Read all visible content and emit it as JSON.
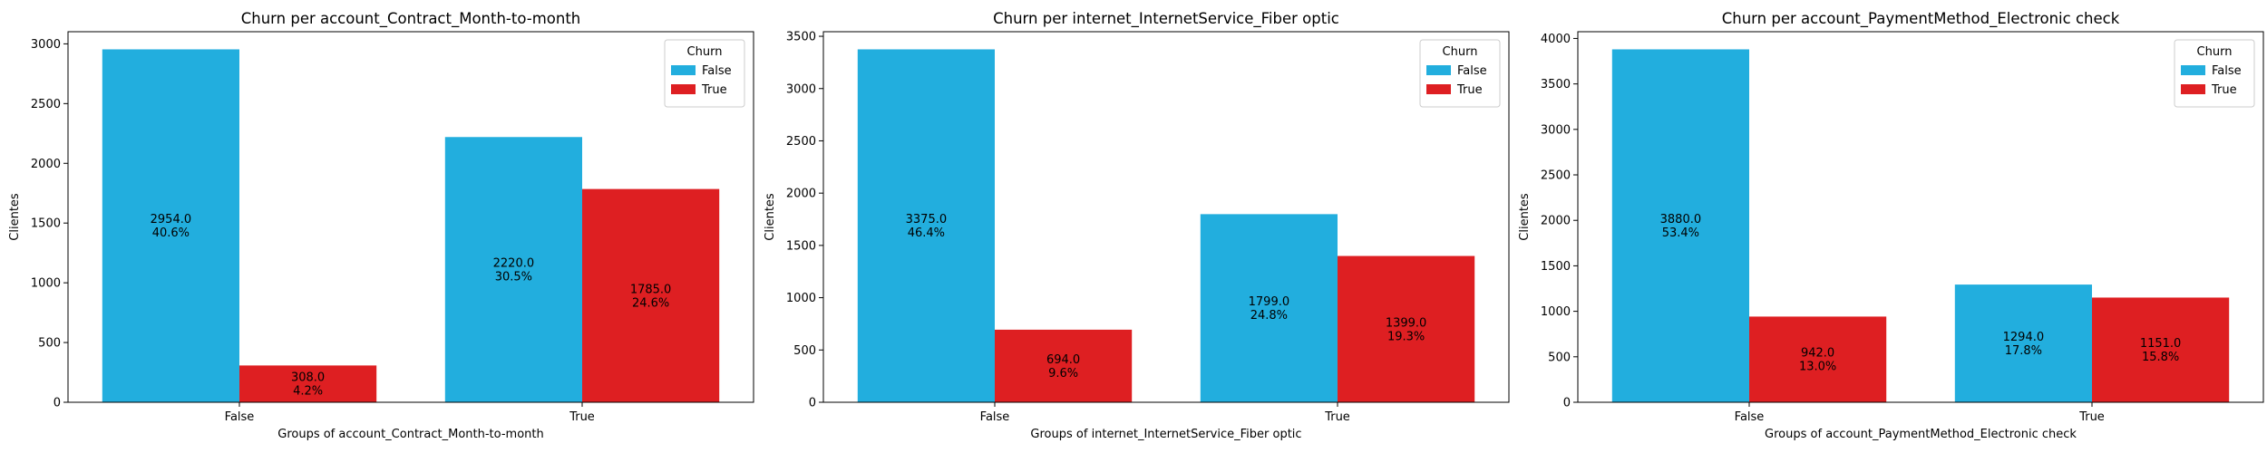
{
  "colors": {
    "false": "#22aede",
    "true": "#de1f22"
  },
  "legend_title": "Churn",
  "chart_data": [
    {
      "type": "bar",
      "title": "Churn per account_Contract_Month-to-month",
      "xlabel": "Groups of account_Contract_Month-to-month",
      "ylabel": "Clientes",
      "categories": [
        "False",
        "True"
      ],
      "ylim": [
        0,
        3101.7
      ],
      "yticks": [
        0,
        500,
        1000,
        1500,
        2000,
        2500,
        3000
      ],
      "legend": {
        "title": "Churn",
        "placement": "top-right"
      },
      "grid": false,
      "series": [
        {
          "name": "False",
          "values": [
            2954.0,
            2220.0
          ],
          "labels": [
            "2954.0\n40.6%",
            "2220.0\n30.5%"
          ]
        },
        {
          "name": "True",
          "values": [
            308.0,
            1785.0
          ],
          "labels": [
            "308.0\n4.2%",
            "1785.0\n24.6%"
          ]
        }
      ]
    },
    {
      "type": "bar",
      "title": "Churn per internet_InternetService_Fiber optic",
      "xlabel": "Groups of internet_InternetService_Fiber optic",
      "ylabel": "Clientes",
      "categories": [
        "False",
        "True"
      ],
      "ylim": [
        0,
        3543.75
      ],
      "yticks": [
        0,
        500,
        1000,
        1500,
        2000,
        2500,
        3000,
        3500
      ],
      "legend": {
        "title": "Churn",
        "placement": "top-right"
      },
      "grid": false,
      "series": [
        {
          "name": "False",
          "values": [
            3375.0,
            1799.0
          ],
          "labels": [
            "3375.0\n46.4%",
            "1799.0\n24.8%"
          ]
        },
        {
          "name": "True",
          "values": [
            694.0,
            1399.0
          ],
          "labels": [
            "694.0\n9.6%",
            "1399.0\n19.3%"
          ]
        }
      ]
    },
    {
      "type": "bar",
      "title": "Churn per account_PaymentMethod_Electronic check",
      "xlabel": "Groups of account_PaymentMethod_Electronic check",
      "ylabel": "Clientes",
      "categories": [
        "False",
        "True"
      ],
      "ylim": [
        0,
        4074.0
      ],
      "yticks": [
        0,
        500,
        1000,
        1500,
        2000,
        2500,
        3000,
        3500,
        4000
      ],
      "legend": {
        "title": "Churn",
        "placement": "top-right"
      },
      "grid": false,
      "series": [
        {
          "name": "False",
          "values": [
            3880.0,
            1294.0
          ],
          "labels": [
            "3880.0\n53.4%",
            "1294.0\n17.8%"
          ]
        },
        {
          "name": "True",
          "values": [
            942.0,
            1151.0
          ],
          "labels": [
            "942.0\n13.0%",
            "1151.0\n15.8%"
          ]
        }
      ]
    }
  ]
}
